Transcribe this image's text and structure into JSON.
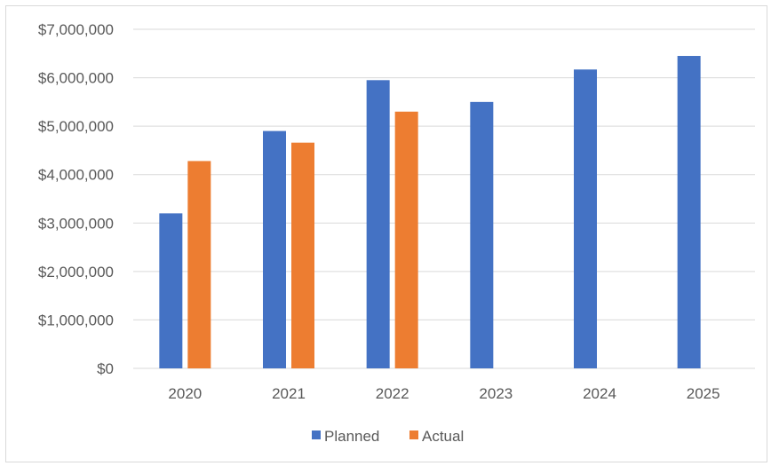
{
  "chart_data": {
    "type": "bar",
    "categories": [
      "2020",
      "2021",
      "2022",
      "2023",
      "2024",
      "2025"
    ],
    "series": [
      {
        "name": "Planned",
        "color": "#4472C4",
        "values": [
          3200000,
          4900000,
          5950000,
          5500000,
          6170000,
          6450000
        ]
      },
      {
        "name": "Actual",
        "color": "#ED7D31",
        "values": [
          4280000,
          4660000,
          5300000,
          null,
          null,
          null
        ]
      }
    ],
    "ylim": [
      0,
      7000000
    ],
    "yticks": [
      "$0",
      "$1,000,000",
      "$2,000,000",
      "$3,000,000",
      "$4,000,000",
      "$5,000,000",
      "$6,000,000",
      "$7,000,000"
    ],
    "grid": true,
    "legend_position": "bottom"
  }
}
